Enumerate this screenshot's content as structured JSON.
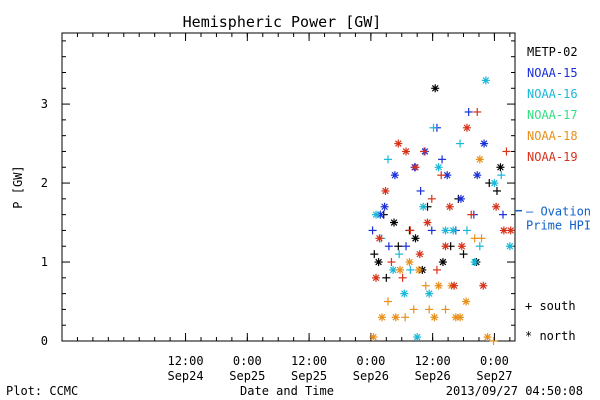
{
  "chart_data": {
    "type": "scatter",
    "title": "Hemispheric Power [GW]",
    "xlabel": "Date and Time",
    "ylabel": "P [GW]",
    "xlim": [
      "2013-09-23T12:00",
      "2013-09-27T04:00"
    ],
    "ylim": [
      0,
      3.9
    ],
    "y_ticks": [
      {
        "value": 0,
        "label": "0"
      },
      {
        "value": 1,
        "label": "1"
      },
      {
        "value": 2,
        "label": "2"
      },
      {
        "value": 3,
        "label": "3"
      }
    ],
    "x_ticks": [
      {
        "value": "2013-09-24T12:00",
        "time": "12:00",
        "day": "Sep24"
      },
      {
        "value": "2013-09-25T00:00",
        "time": "0:00",
        "day": "Sep25"
      },
      {
        "value": "2013-09-25T12:00",
        "time": "12:00",
        "day": "Sep25"
      },
      {
        "value": "2013-09-26T00:00",
        "time": "0:00",
        "day": "Sep26"
      },
      {
        "value": "2013-09-26T12:00",
        "time": "12:00",
        "day": "Sep26"
      },
      {
        "value": "2013-09-27T00:00",
        "time": "0:00",
        "day": "Sep27"
      }
    ],
    "legend_placement": "right",
    "marker_legend": [
      {
        "marker": "plus",
        "label": "+ south"
      },
      {
        "marker": "asterisk",
        "label": "* north"
      }
    ],
    "reference_line": {
      "value": 1.65,
      "label_line1": "– Ovation",
      "label_line2": "Prime HPI",
      "color": "#1060c8"
    },
    "series": [
      {
        "name": "METP-02",
        "color": "#000000",
        "points": [
          {
            "x": "2013-09-26T00:40",
            "y": 1.1,
            "m": "plus"
          },
          {
            "x": "2013-09-26T01:30",
            "y": 1.0,
            "m": "asterisk"
          },
          {
            "x": "2013-09-26T02:30",
            "y": 1.6,
            "m": "plus"
          },
          {
            "x": "2013-09-26T03:00",
            "y": 0.8,
            "m": "plus"
          },
          {
            "x": "2013-09-26T04:30",
            "y": 1.5,
            "m": "asterisk"
          },
          {
            "x": "2013-09-26T05:20",
            "y": 1.2,
            "m": "plus"
          },
          {
            "x": "2013-09-26T07:30",
            "y": 1.4,
            "m": "plus"
          },
          {
            "x": "2013-09-26T08:40",
            "y": 1.3,
            "m": "asterisk"
          },
          {
            "x": "2013-09-26T10:00",
            "y": 0.9,
            "m": "asterisk"
          },
          {
            "x": "2013-09-26T11:00",
            "y": 1.7,
            "m": "plus"
          },
          {
            "x": "2013-09-26T12:30",
            "y": 3.2,
            "m": "asterisk"
          },
          {
            "x": "2013-09-26T14:00",
            "y": 1.0,
            "m": "asterisk"
          },
          {
            "x": "2013-09-26T15:30",
            "y": 1.2,
            "m": "plus"
          },
          {
            "x": "2013-09-26T17:00",
            "y": 1.8,
            "m": "plus"
          },
          {
            "x": "2013-09-26T18:00",
            "y": 1.1,
            "m": "plus"
          },
          {
            "x": "2013-09-26T20:30",
            "y": 1.0,
            "m": "asterisk"
          },
          {
            "x": "2013-09-26T23:00",
            "y": 2.0,
            "m": "plus"
          },
          {
            "x": "2013-09-27T00:30",
            "y": 1.9,
            "m": "plus"
          },
          {
            "x": "2013-09-27T01:10",
            "y": 2.2,
            "m": "asterisk"
          }
        ]
      },
      {
        "name": "NOAA-15",
        "color": "#1a2fd6",
        "points": [
          {
            "x": "2013-09-26T00:20",
            "y": 1.4,
            "m": "plus"
          },
          {
            "x": "2013-09-26T01:50",
            "y": 1.6,
            "m": "asterisk"
          },
          {
            "x": "2013-09-26T02:40",
            "y": 1.7,
            "m": "asterisk"
          },
          {
            "x": "2013-09-26T03:30",
            "y": 1.2,
            "m": "plus"
          },
          {
            "x": "2013-09-26T04:40",
            "y": 2.1,
            "m": "asterisk"
          },
          {
            "x": "2013-09-26T06:50",
            "y": 1.2,
            "m": "plus"
          },
          {
            "x": "2013-09-26T08:30",
            "y": 2.2,
            "m": "asterisk"
          },
          {
            "x": "2013-09-26T09:40",
            "y": 1.9,
            "m": "plus"
          },
          {
            "x": "2013-09-26T10:30",
            "y": 2.4,
            "m": "asterisk"
          },
          {
            "x": "2013-09-26T11:50",
            "y": 1.4,
            "m": "plus"
          },
          {
            "x": "2013-09-26T12:50",
            "y": 2.7,
            "m": "plus"
          },
          {
            "x": "2013-09-26T13:50",
            "y": 2.3,
            "m": "plus"
          },
          {
            "x": "2013-09-26T14:50",
            "y": 2.1,
            "m": "asterisk"
          },
          {
            "x": "2013-09-26T16:30",
            "y": 1.4,
            "m": "plus"
          },
          {
            "x": "2013-09-26T17:30",
            "y": 1.8,
            "m": "asterisk"
          },
          {
            "x": "2013-09-26T19:00",
            "y": 2.9,
            "m": "plus"
          },
          {
            "x": "2013-09-26T20:00",
            "y": 1.6,
            "m": "plus"
          },
          {
            "x": "2013-09-26T20:40",
            "y": 2.1,
            "m": "asterisk"
          },
          {
            "x": "2013-09-26T22:00",
            "y": 2.5,
            "m": "asterisk"
          },
          {
            "x": "2013-09-27T01:40",
            "y": 1.6,
            "m": "plus"
          }
        ]
      },
      {
        "name": "NOAA-16",
        "color": "#1ab8d8",
        "points": [
          {
            "x": "2013-09-26T01:00",
            "y": 1.6,
            "m": "asterisk"
          },
          {
            "x": "2013-09-26T02:00",
            "y": 1.3,
            "m": "plus"
          },
          {
            "x": "2013-09-26T03:20",
            "y": 2.3,
            "m": "plus"
          },
          {
            "x": "2013-09-26T04:20",
            "y": 0.9,
            "m": "asterisk"
          },
          {
            "x": "2013-09-26T05:30",
            "y": 1.1,
            "m": "plus"
          },
          {
            "x": "2013-09-26T06:30",
            "y": 0.6,
            "m": "asterisk"
          },
          {
            "x": "2013-09-26T07:40",
            "y": 0.9,
            "m": "plus"
          },
          {
            "x": "2013-09-26T09:00",
            "y": 0.05,
            "m": "asterisk"
          },
          {
            "x": "2013-09-26T10:10",
            "y": 1.7,
            "m": "asterisk"
          },
          {
            "x": "2013-09-26T11:20",
            "y": 0.6,
            "m": "asterisk"
          },
          {
            "x": "2013-09-26T12:10",
            "y": 2.7,
            "m": "plus"
          },
          {
            "x": "2013-09-26T13:10",
            "y": 2.2,
            "m": "asterisk"
          },
          {
            "x": "2013-09-26T14:30",
            "y": 1.4,
            "m": "asterisk"
          },
          {
            "x": "2013-09-26T16:00",
            "y": 1.4,
            "m": "asterisk"
          },
          {
            "x": "2013-09-26T17:20",
            "y": 2.5,
            "m": "plus"
          },
          {
            "x": "2013-09-26T18:40",
            "y": 1.4,
            "m": "plus"
          },
          {
            "x": "2013-09-26T20:10",
            "y": 1.0,
            "m": "asterisk"
          },
          {
            "x": "2013-09-26T21:10",
            "y": 1.2,
            "m": "plus"
          },
          {
            "x": "2013-09-26T22:20",
            "y": 3.3,
            "m": "asterisk"
          },
          {
            "x": "2013-09-27T00:00",
            "y": 2.0,
            "m": "asterisk"
          },
          {
            "x": "2013-09-27T01:20",
            "y": 2.1,
            "m": "plus"
          },
          {
            "x": "2013-09-27T03:00",
            "y": 1.2,
            "m": "asterisk"
          }
        ]
      },
      {
        "name": "NOAA-17",
        "color": "#30e080",
        "points": []
      },
      {
        "name": "NOAA-18",
        "color": "#e8901a",
        "points": [
          {
            "x": "2013-09-26T00:30",
            "y": 0.05,
            "m": "asterisk"
          },
          {
            "x": "2013-09-26T02:10",
            "y": 0.3,
            "m": "asterisk"
          },
          {
            "x": "2013-09-26T03:20",
            "y": 0.5,
            "m": "plus"
          },
          {
            "x": "2013-09-26T04:50",
            "y": 0.3,
            "m": "asterisk"
          },
          {
            "x": "2013-09-26T05:40",
            "y": 0.9,
            "m": "asterisk"
          },
          {
            "x": "2013-09-26T06:40",
            "y": 0.3,
            "m": "plus"
          },
          {
            "x": "2013-09-26T07:30",
            "y": 1.0,
            "m": "asterisk"
          },
          {
            "x": "2013-09-26T08:20",
            "y": 0.4,
            "m": "plus"
          },
          {
            "x": "2013-09-26T09:20",
            "y": 0.9,
            "m": "asterisk"
          },
          {
            "x": "2013-09-26T10:40",
            "y": 0.7,
            "m": "plus"
          },
          {
            "x": "2013-09-26T11:20",
            "y": 0.4,
            "m": "plus"
          },
          {
            "x": "2013-09-26T12:20",
            "y": 0.3,
            "m": "asterisk"
          },
          {
            "x": "2013-09-26T13:10",
            "y": 0.7,
            "m": "asterisk"
          },
          {
            "x": "2013-09-26T14:30",
            "y": 0.4,
            "m": "plus"
          },
          {
            "x": "2013-09-26T15:40",
            "y": 0.7,
            "m": "asterisk"
          },
          {
            "x": "2013-09-26T16:30",
            "y": 0.3,
            "m": "asterisk"
          },
          {
            "x": "2013-09-26T17:20",
            "y": 0.3,
            "m": "asterisk"
          },
          {
            "x": "2013-09-26T18:30",
            "y": 0.5,
            "m": "asterisk"
          },
          {
            "x": "2013-09-26T20:10",
            "y": 1.3,
            "m": "plus"
          },
          {
            "x": "2013-09-26T21:10",
            "y": 2.3,
            "m": "asterisk"
          },
          {
            "x": "2013-09-26T21:30",
            "y": 1.3,
            "m": "plus"
          },
          {
            "x": "2013-09-26T22:40",
            "y": 0.05,
            "m": "asterisk"
          },
          {
            "x": "2013-09-26T23:50",
            "y": 0.0,
            "m": "plus"
          }
        ]
      },
      {
        "name": "NOAA-19",
        "color": "#d8321a",
        "points": [
          {
            "x": "2013-09-26T01:00",
            "y": 0.8,
            "m": "asterisk"
          },
          {
            "x": "2013-09-26T01:40",
            "y": 1.3,
            "m": "asterisk"
          },
          {
            "x": "2013-09-26T02:50",
            "y": 1.9,
            "m": "asterisk"
          },
          {
            "x": "2013-09-26T04:00",
            "y": 1.0,
            "m": "plus"
          },
          {
            "x": "2013-09-26T05:20",
            "y": 2.5,
            "m": "asterisk"
          },
          {
            "x": "2013-09-26T06:10",
            "y": 0.8,
            "m": "plus"
          },
          {
            "x": "2013-09-26T06:50",
            "y": 2.4,
            "m": "asterisk"
          },
          {
            "x": "2013-09-26T07:40",
            "y": 1.4,
            "m": "plus"
          },
          {
            "x": "2013-09-26T08:40",
            "y": 2.2,
            "m": "asterisk"
          },
          {
            "x": "2013-09-26T09:30",
            "y": 1.1,
            "m": "asterisk"
          },
          {
            "x": "2013-09-26T10:20",
            "y": 2.4,
            "m": "plus"
          },
          {
            "x": "2013-09-26T11:00",
            "y": 1.5,
            "m": "asterisk"
          },
          {
            "x": "2013-09-26T11:50",
            "y": 1.8,
            "m": "plus"
          },
          {
            "x": "2013-09-26T12:50",
            "y": 0.9,
            "m": "plus"
          },
          {
            "x": "2013-09-26T13:40",
            "y": 2.1,
            "m": "plus"
          },
          {
            "x": "2013-09-26T14:30",
            "y": 1.2,
            "m": "asterisk"
          },
          {
            "x": "2013-09-26T15:20",
            "y": 1.7,
            "m": "asterisk"
          },
          {
            "x": "2013-09-26T16:10",
            "y": 0.7,
            "m": "asterisk"
          },
          {
            "x": "2013-09-26T17:40",
            "y": 1.2,
            "m": "asterisk"
          },
          {
            "x": "2013-09-26T18:40",
            "y": 2.7,
            "m": "asterisk"
          },
          {
            "x": "2013-09-26T19:30",
            "y": 1.6,
            "m": "plus"
          },
          {
            "x": "2013-09-26T20:40",
            "y": 2.9,
            "m": "plus"
          },
          {
            "x": "2013-09-26T21:50",
            "y": 0.7,
            "m": "asterisk"
          },
          {
            "x": "2013-09-27T00:20",
            "y": 1.7,
            "m": "asterisk"
          },
          {
            "x": "2013-09-27T01:50",
            "y": 1.4,
            "m": "asterisk"
          },
          {
            "x": "2013-09-27T02:20",
            "y": 2.4,
            "m": "plus"
          },
          {
            "x": "2013-09-27T03:10",
            "y": 1.4,
            "m": "asterisk"
          }
        ]
      }
    ]
  },
  "footer": {
    "left": "Plot: CCMC",
    "timestamp": "2013/09/27 04:50:08"
  }
}
